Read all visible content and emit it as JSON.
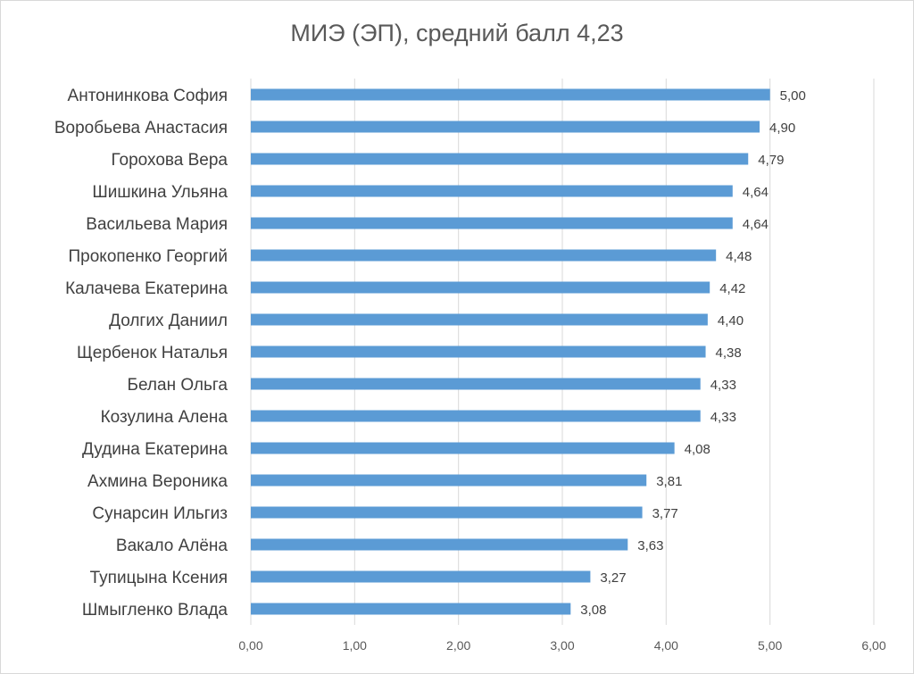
{
  "chart_data": {
    "type": "bar",
    "orientation": "horizontal",
    "title": "МИЭ (ЭП), средний балл 4,23",
    "xlabel": "",
    "ylabel": "",
    "xlim": [
      0,
      6
    ],
    "x_ticks": [
      "0,00",
      "1,00",
      "2,00",
      "3,00",
      "4,00",
      "5,00",
      "6,00"
    ],
    "grid": true,
    "legend": "none",
    "bar_color": "#5b9bd5",
    "categories": [
      "Антонинкова София",
      "Воробьева Анастасия",
      "Горохова Вера",
      "Шишкина Ульяна",
      "Васильева Мария",
      "Прокопенко Георгий",
      "Калачева Екатерина",
      "Долгих Даниил",
      "Щербенок Наталья",
      "Белан Ольга",
      "Козулина Алена",
      "Дудина Екатерина",
      "Ахмина Вероника",
      "Сунарсин Ильгиз",
      "Вакало Алёна",
      "Тупицына Ксения",
      "Шмыгленко Влада"
    ],
    "values": [
      5.0,
      4.9,
      4.79,
      4.64,
      4.64,
      4.48,
      4.42,
      4.4,
      4.38,
      4.33,
      4.33,
      4.08,
      3.81,
      3.77,
      3.63,
      3.27,
      3.08
    ],
    "value_labels": [
      "5,00",
      "4,90",
      "4,79",
      "4,64",
      "4,64",
      "4,48",
      "4,42",
      "4,40",
      "4,38",
      "4,33",
      "4,33",
      "4,08",
      "3,81",
      "3,77",
      "3,63",
      "3,27",
      "3,08"
    ]
  }
}
